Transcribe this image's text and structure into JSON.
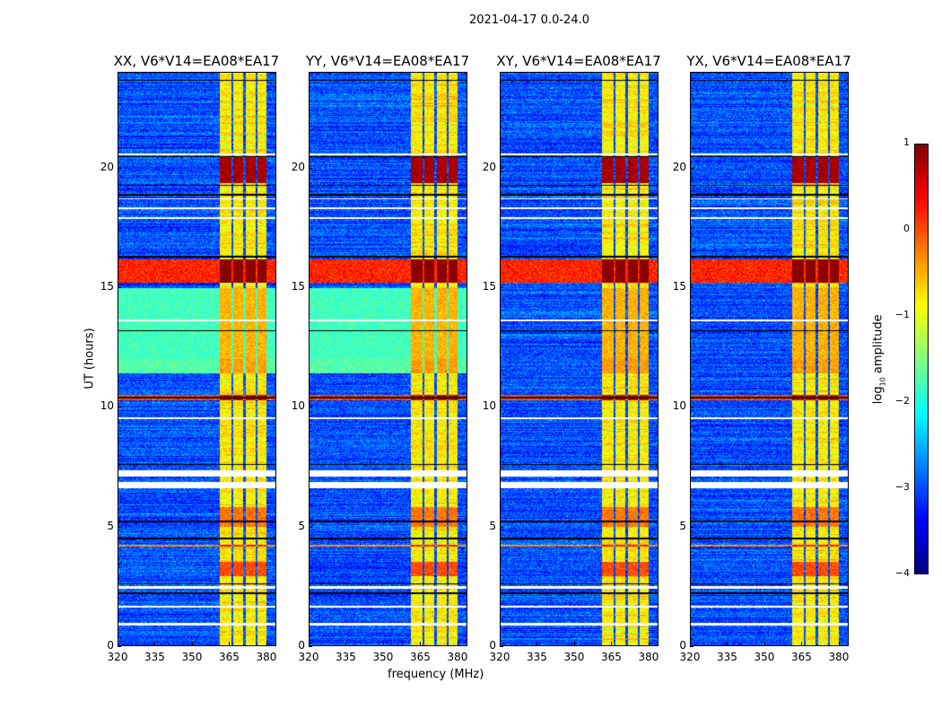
{
  "suptitle": "2021-04-17 0.0-24.0",
  "chart_data": {
    "type": "heatmap",
    "title": "2021-04-17 0.0-24.0",
    "xlabel": "frequency (MHz)",
    "ylabel": "UT (hours)",
    "xlim": [
      320,
      384
    ],
    "ylim": [
      0,
      24
    ],
    "xticks": [
      "320",
      "335",
      "350",
      "365",
      "380"
    ],
    "xtick_values": [
      320,
      335,
      350,
      365,
      380
    ],
    "yticks": [
      "0",
      "5",
      "10",
      "15",
      "20"
    ],
    "ytick_values": [
      0,
      5,
      10,
      15,
      20
    ],
    "panels": [
      {
        "title": "XX, V6*V14=EA08*EA17",
        "green_bg": true
      },
      {
        "title": "YY, V6*V14=EA08*EA17",
        "green_bg": true
      },
      {
        "title": "XY, V6*V14=EA08*EA17",
        "green_bg": false
      },
      {
        "title": "YX, V6*V14=EA08*EA17",
        "green_bg": false
      }
    ],
    "background_log_amp": -3.0,
    "band": {
      "freq_range": [
        361,
        380
      ],
      "columns": [
        [
          361,
          366
        ],
        [
          366.8,
          370.8
        ],
        [
          371.6,
          375.6
        ],
        [
          376.4,
          380
        ]
      ],
      "log_amp": -0.8
    },
    "features": [
      {
        "t": [
          15.2,
          16.2
        ],
        "bg": 0.2,
        "band": 1.0
      },
      {
        "t": [
          19.4,
          20.5
        ],
        "bg": null,
        "band": 0.8
      },
      {
        "t": [
          10.3,
          10.5
        ],
        "bg": 0.0,
        "band": 0.6
      },
      {
        "t": [
          4.15,
          4.25
        ],
        "bg": -0.3,
        "band": 0.3
      },
      {
        "t": [
          12.0,
          15.0
        ],
        "bg_green": -1.8,
        "band": -0.5
      },
      {
        "t": [
          11.4,
          12.0
        ],
        "bg_green": -1.7,
        "band": -0.4
      },
      {
        "t": [
          2.9,
          3.5
        ],
        "bg": null,
        "band": 0.0
      },
      {
        "t": [
          5.0,
          5.8
        ],
        "bg": null,
        "band": -0.2
      }
    ],
    "flagged_hours": [
      [
        7.1,
        7.35
      ],
      [
        6.6,
        6.85
      ],
      [
        2.4,
        2.5
      ],
      [
        0.85,
        0.95
      ],
      [
        20.55,
        20.65
      ],
      [
        1.6,
        1.68
      ],
      [
        17.9,
        17.97
      ],
      [
        18.3,
        18.36
      ],
      [
        18.7,
        18.76
      ],
      [
        13.6,
        13.66
      ],
      [
        9.5,
        9.56
      ]
    ],
    "black_lines_hours": [
      23.7,
      20.5,
      19.3,
      16.3,
      13.2,
      7.6,
      2.6,
      2.2,
      10.4,
      4.5,
      18.9,
      5.2
    ],
    "colorbar": {
      "label": "log10 amplitude",
      "label_main": "log",
      "label_sub": "10",
      "label_rest": " amplitude",
      "range": [
        -4,
        1
      ],
      "ticks": [
        "1",
        "0",
        "−1",
        "−2",
        "−3",
        "−4"
      ],
      "tick_values": [
        1,
        0,
        -1,
        -2,
        -3,
        -4
      ],
      "colormap": "jet"
    }
  }
}
